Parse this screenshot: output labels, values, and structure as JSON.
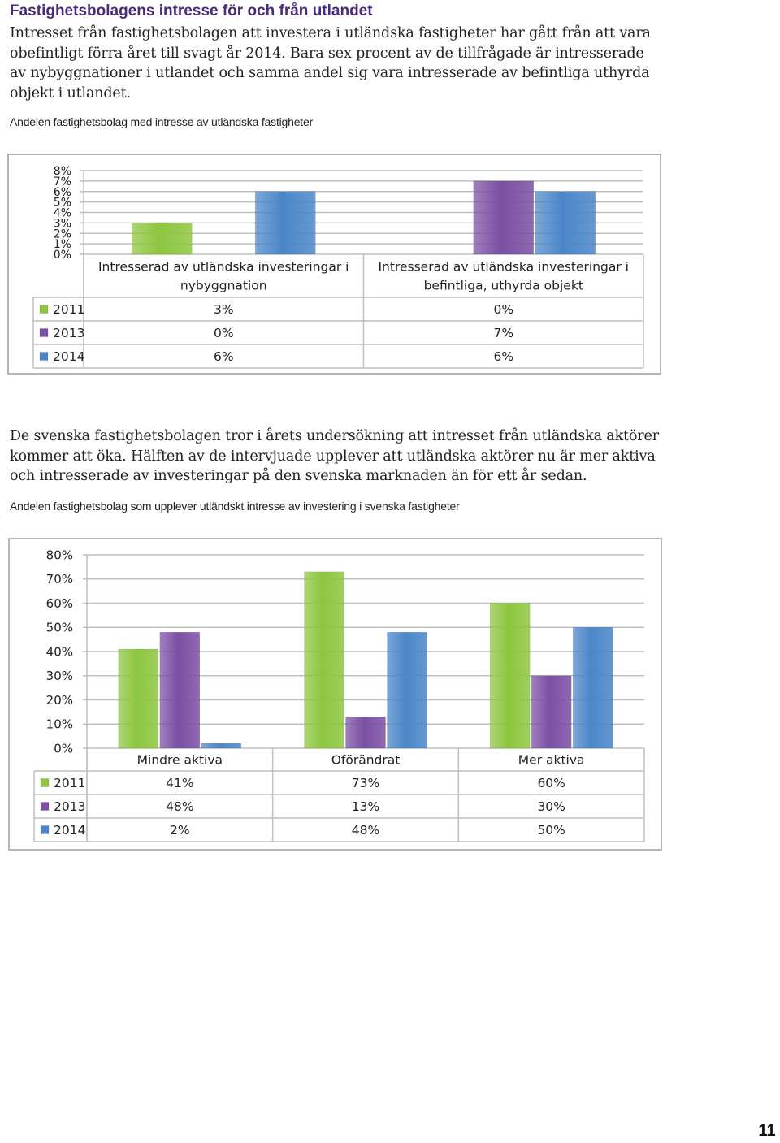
{
  "heading": "Fastighetsbolagens intresse för och från utlandet",
  "intro": "Intresset från fastighetsbolagen att investera i utländska fastigheter har gått från att vara obefintligt förra året till svagt år 2014. Bara sex procent av de tillfrågade är intresserade av nybyggnationer i utlandet och samma andel sig vara intresserade av befintliga uthyrda objekt i utlandet.",
  "caption1": "Andelen fastighetsbolag med intresse av utländska fastigheter",
  "paragraph2": "De svenska fastighetsbolagen tror i årets undersökning att intresset från utländska aktörer kommer att öka. Hälften av de intervjuade upplever att utländska aktörer nu är mer aktiva och intresserade av investeringar på den svenska marknaden än för ett år sedan.",
  "caption2": "Andelen fastighetsbolag som upplever utländskt intresse av investering i svenska fastigheter",
  "page_number": "11",
  "colors": {
    "2011": "#8dc63f",
    "2013": "#7b4fa3",
    "2014": "#4a86c8",
    "grid": "#bfbfbf"
  },
  "chart_data": [
    {
      "type": "bar",
      "title": "",
      "categories": [
        [
          "Intresserad av utländska investeringar i",
          "nybyggnation"
        ],
        [
          "Intresserad av utländska investeringar i",
          "befintliga, uthyrda objekt"
        ]
      ],
      "series": [
        {
          "name": "2011",
          "values": [
            3,
            0
          ],
          "labels": [
            "3%",
            "0%"
          ]
        },
        {
          "name": "2013",
          "values": [
            0,
            7
          ],
          "labels": [
            "0%",
            "7%"
          ]
        },
        {
          "name": "2014",
          "values": [
            6,
            6
          ],
          "labels": [
            "6%",
            "6%"
          ]
        }
      ],
      "yticks": [
        "0%",
        "1%",
        "2%",
        "3%",
        "4%",
        "5%",
        "6%",
        "7%",
        "8%"
      ],
      "ylim": [
        0,
        8
      ],
      "grid": true,
      "legend": "data-table"
    },
    {
      "type": "bar",
      "title": "",
      "categories": [
        [
          "Mindre aktiva"
        ],
        [
          "Oförändrat"
        ],
        [
          "Mer aktiva"
        ]
      ],
      "series": [
        {
          "name": "2011",
          "values": [
            41,
            73,
            60
          ],
          "labels": [
            "41%",
            "73%",
            "60%"
          ]
        },
        {
          "name": "2013",
          "values": [
            48,
            13,
            30
          ],
          "labels": [
            "48%",
            "13%",
            "30%"
          ]
        },
        {
          "name": "2014",
          "values": [
            2,
            48,
            50
          ],
          "labels": [
            "2%",
            "48%",
            "50%"
          ]
        }
      ],
      "yticks": [
        "0%",
        "10%",
        "20%",
        "30%",
        "40%",
        "50%",
        "60%",
        "70%",
        "80%"
      ],
      "ylim": [
        0,
        80
      ],
      "grid": true,
      "legend": "data-table"
    }
  ]
}
